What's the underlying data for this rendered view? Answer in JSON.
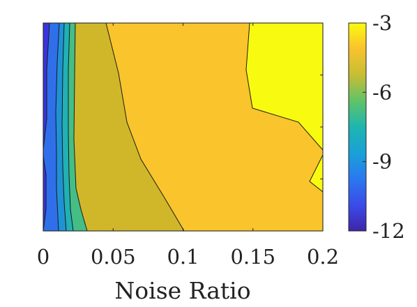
{
  "colors": {
    "band_darkest": "#3b34dc",
    "band_blue": "#2f6fea",
    "band_cyan_blue": "#1f92d6",
    "band_teal": "#21b0b4",
    "band_green": "#44be86",
    "band_olive": "#d0b72a",
    "band_orange": "#f9c42c",
    "band_yellow": "#f8fb10",
    "contour_line": "#1a1a1a",
    "axis_line": "#262626"
  },
  "chart_data": {
    "type": "heatmap",
    "subtype": "filled-contour",
    "xlabel": "Noise Ratio",
    "x_ticks": [
      {
        "value": 0,
        "label": "0"
      },
      {
        "value": 0.05,
        "label": "0.05"
      },
      {
        "value": 0.1,
        "label": "0.1"
      },
      {
        "value": 0.15,
        "label": "0.15"
      },
      {
        "value": 0.2,
        "label": "0.2"
      }
    ],
    "xlim": [
      0,
      0.2
    ],
    "y_tick_count": 5,
    "grid": false,
    "colorbar": {
      "clim": [
        -12,
        -3
      ],
      "ticks": [
        {
          "value": -3,
          "label": "-3"
        },
        {
          "value": -6,
          "label": "-6"
        },
        {
          "value": -9,
          "label": "-9"
        },
        {
          "value": -12,
          "label": "-12"
        }
      ],
      "colormap": "parula"
    },
    "regions": [
      {
        "level": "-3 and above",
        "color_key": "band_yellow",
        "approx_x_range": [
          0.145,
          0.2
        ]
      },
      {
        "level": "-4 to -3",
        "color_key": "band_orange",
        "approx_x_range": [
          0.04,
          0.2
        ]
      },
      {
        "level": "-5 to -4",
        "color_key": "band_olive",
        "approx_x_range": [
          0.02,
          0.1
        ]
      },
      {
        "level": "-7 to -6",
        "color_key": "band_green",
        "approx_x_range": [
          0.012,
          0.03
        ]
      },
      {
        "level": "-9 to -8",
        "color_key": "band_teal",
        "approx_x_range": [
          0.008,
          0.02
        ]
      },
      {
        "level": "-10 to -9",
        "color_key": "band_cyan_blue",
        "approx_x_range": [
          0.005,
          0.015
        ]
      },
      {
        "level": "-11 to -10",
        "color_key": "band_blue",
        "approx_x_range": [
          0.002,
          0.01
        ]
      },
      {
        "level": "-12 to -11",
        "color_key": "band_darkest",
        "approx_x_range": [
          0,
          0.005
        ]
      }
    ]
  }
}
